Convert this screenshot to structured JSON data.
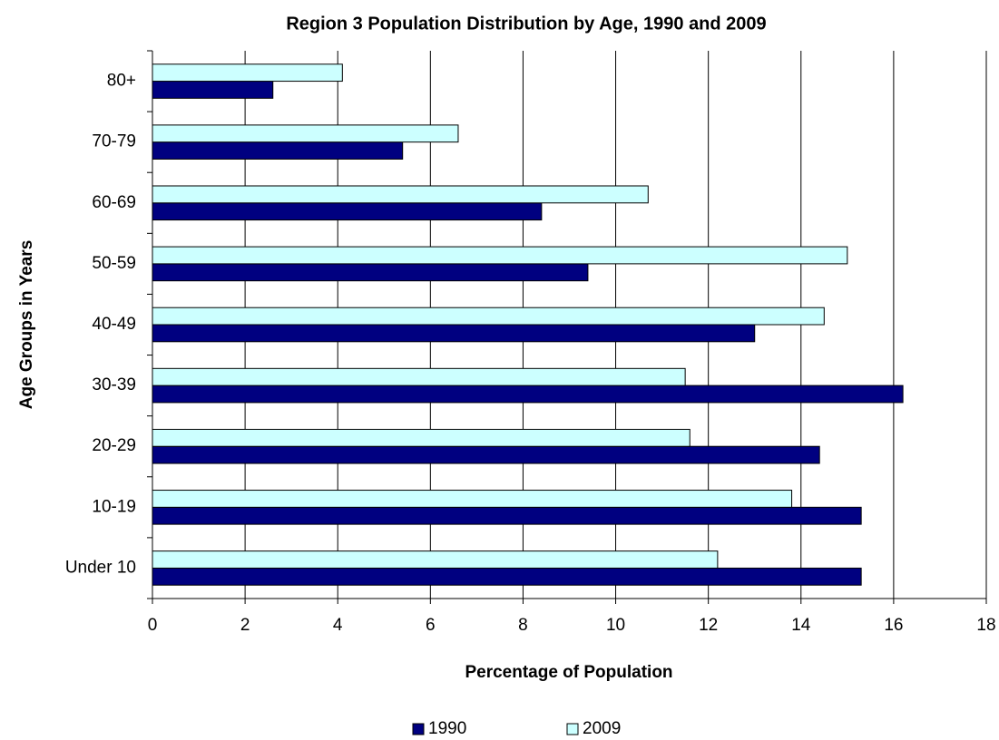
{
  "chart_data": {
    "type": "hbar",
    "title": "Region 3 Population Distribution by Age, 1990 and 2009",
    "x_label": "Percentage of Population",
    "y_label": "Age Groups in Years",
    "categories": [
      "Under 10",
      "10-19",
      "20-29",
      "30-39",
      "40-49",
      "50-59",
      "60-69",
      "70-79",
      "80+"
    ],
    "series": [
      {
        "name": "1990",
        "color": "#000080",
        "values": [
          15.3,
          15.3,
          14.4,
          16.2,
          13.0,
          9.4,
          8.4,
          5.4,
          2.6
        ]
      },
      {
        "name": "2009",
        "color": "#ccffff",
        "values": [
          12.2,
          13.8,
          11.6,
          11.5,
          14.5,
          15.0,
          10.7,
          6.6,
          4.1
        ]
      }
    ],
    "xlim": [
      0,
      18
    ],
    "xticks": [
      0,
      2,
      4,
      6,
      8,
      10,
      12,
      14,
      16,
      18
    ],
    "grid": true,
    "legend": "bottom"
  }
}
